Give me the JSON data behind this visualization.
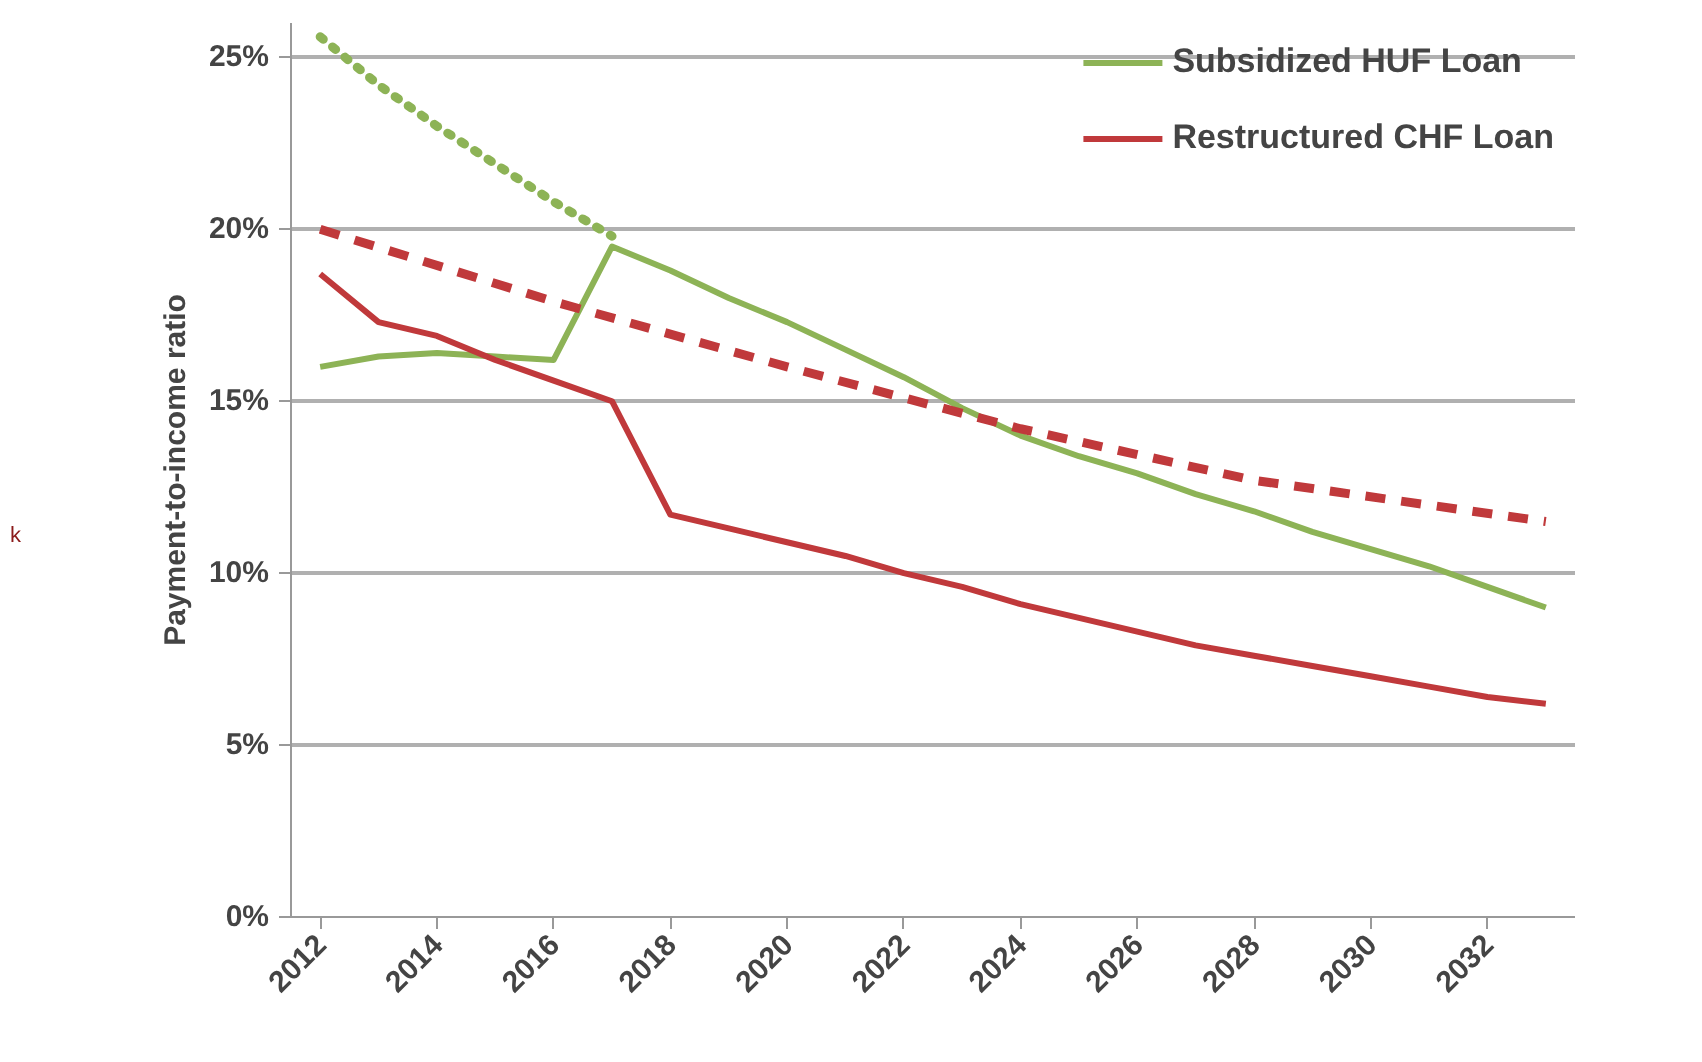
{
  "chart_data": {
    "type": "line",
    "ylabel": "Payment-to-income ratio",
    "xlim": [
      2011.5,
      2033.5
    ],
    "xticks": [
      2012,
      2014,
      2016,
      2018,
      2020,
      2022,
      2024,
      2026,
      2028,
      2030,
      2032
    ],
    "ylim": [
      0,
      26
    ],
    "yticks": [
      {
        "value": 0,
        "label": "0%"
      },
      {
        "value": 5,
        "label": "5%"
      },
      {
        "value": 10,
        "label": "10%"
      },
      {
        "value": 15,
        "label": "15%"
      },
      {
        "value": 20,
        "label": "20%"
      },
      {
        "value": 25,
        "label": "25%"
      }
    ],
    "grid": "y",
    "legend": "top right",
    "annotations": [
      "k"
    ],
    "series": [
      {
        "name": "Subsidized HUF Loan",
        "color": "#8db356",
        "x": [
          2012,
          2013,
          2014,
          2015,
          2016,
          2017,
          2018,
          2019,
          2020,
          2021,
          2022,
          2023,
          2024,
          2025,
          2026,
          2027,
          2028,
          2029,
          2030,
          2031,
          2032,
          2033
        ],
        "values": [
          16.0,
          16.3,
          16.4,
          16.3,
          16.2,
          19.5,
          18.8,
          18.0,
          17.3,
          16.5,
          15.7,
          14.8,
          14.0,
          13.4,
          12.9,
          12.3,
          11.8,
          11.2,
          10.7,
          10.2,
          9.6,
          9.0
        ]
      },
      {
        "name": "Restructured CHF Loan",
        "color": "#c0393b",
        "x": [
          2012,
          2013,
          2014,
          2015,
          2016,
          2017,
          2018,
          2019,
          2020,
          2021,
          2022,
          2023,
          2024,
          2025,
          2026,
          2027,
          2028,
          2029,
          2030,
          2031,
          2032,
          2033
        ],
        "values": [
          18.7,
          17.3,
          16.9,
          16.2,
          15.6,
          15.0,
          11.7,
          11.3,
          10.9,
          10.5,
          10.0,
          9.6,
          9.1,
          8.7,
          8.3,
          7.9,
          7.6,
          7.3,
          7.0,
          6.7,
          6.4,
          6.2
        ]
      },
      {
        "color": "#8db356",
        "line_style": "dotted",
        "x": [
          2012,
          2013,
          2014,
          2015,
          2016,
          2017
        ],
        "values": [
          25.6,
          24.2,
          23.0,
          21.9,
          20.8,
          19.8
        ]
      },
      {
        "color": "#c0393b",
        "line_style": "dashed",
        "x": [
          2012,
          2016,
          2020,
          2024,
          2028,
          2033
        ],
        "values": [
          20.0,
          17.9,
          16.0,
          14.2,
          12.7,
          11.5
        ]
      }
    ]
  }
}
